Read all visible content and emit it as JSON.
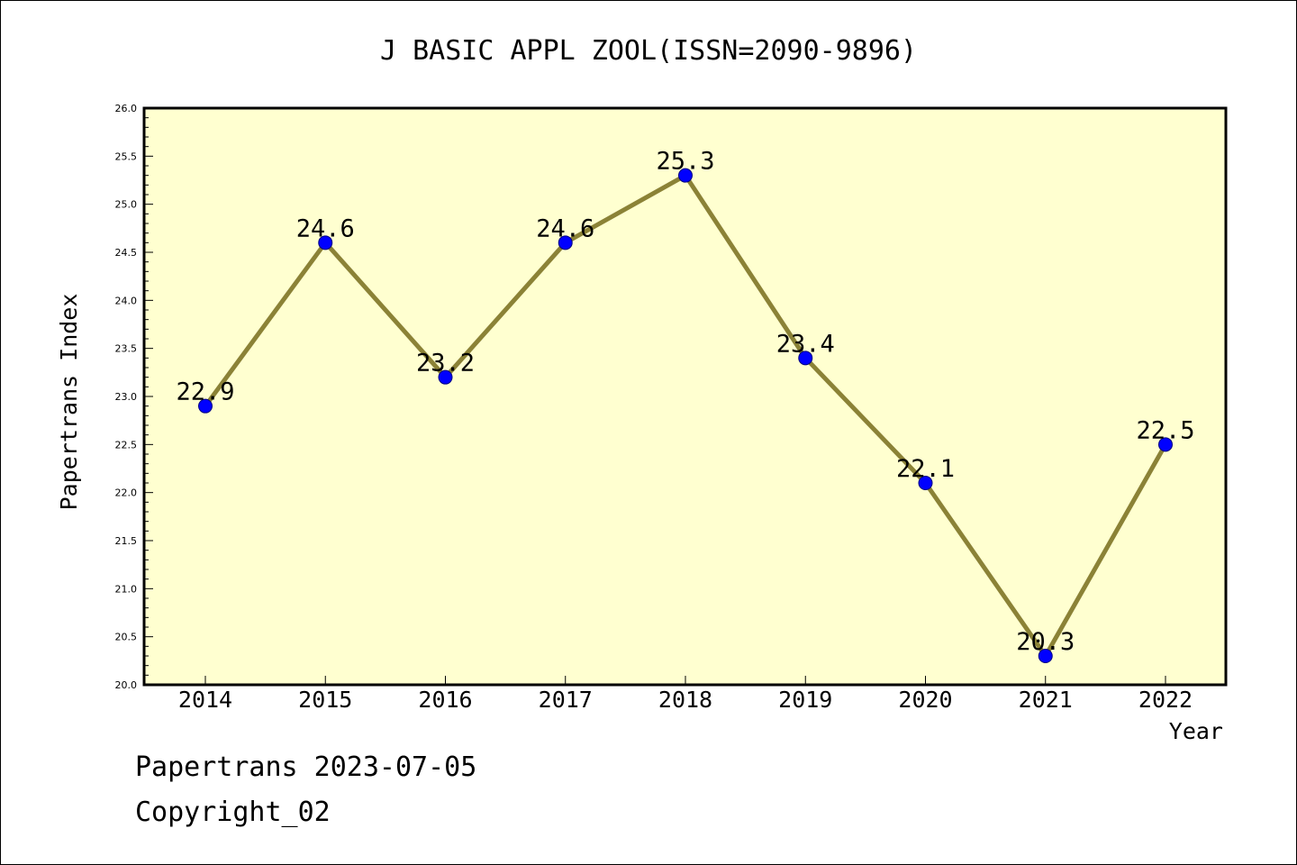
{
  "chart_data": {
    "type": "line",
    "title": "J BASIC APPL ZOOL(ISSN=2090-9896)",
    "xlabel": "Year",
    "ylabel": "Papertrans Index",
    "categories": [
      "2014",
      "2015",
      "2016",
      "2017",
      "2018",
      "2019",
      "2020",
      "2021",
      "2022"
    ],
    "values": [
      22.9,
      24.6,
      23.2,
      24.6,
      25.3,
      23.4,
      22.1,
      20.3,
      22.5
    ],
    "data_labels": [
      "22.9",
      "24.6",
      "23.2",
      "24.6",
      "25.3",
      "23.4",
      "22.1",
      "20.3",
      "22.5"
    ],
    "ylim": [
      20.0,
      26.0
    ],
    "yticks": [
      "20.0",
      "20.5",
      "21.0",
      "21.5",
      "22.0",
      "22.5",
      "23.0",
      "23.5",
      "24.0",
      "24.5",
      "25.0",
      "25.5",
      "26.0"
    ],
    "grid": false,
    "legend": "none",
    "colors": {
      "plot_background": "#FFFFD0",
      "line": "#8B8236",
      "marker": "#0000FF"
    }
  },
  "footer": {
    "line1": "Papertrans 2023-07-05",
    "line2": "Copyright_02"
  }
}
